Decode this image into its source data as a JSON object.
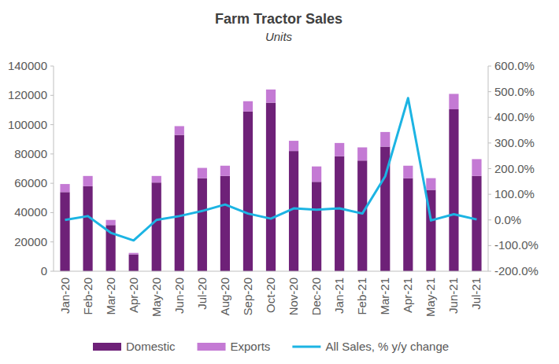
{
  "chart_data": {
    "type": "bar",
    "title": "Farm Tractor Sales",
    "subtitle": "Units",
    "stacked": true,
    "legend": "bottom",
    "grid": false,
    "categories": [
      "Jan-20",
      "Feb-20",
      "Mar-20",
      "Apr-20",
      "May-20",
      "Jun-20",
      "Jul-20",
      "Aug-20",
      "Sep-20",
      "Oct-20",
      "Nov-20",
      "Dec-20",
      "Jan-21",
      "Feb-21",
      "Mar-21",
      "Apr-21",
      "May-21",
      "Jun-21",
      "Jul-21"
    ],
    "series": [
      {
        "name": "Domestic",
        "type": "bar",
        "color": "#6e2178",
        "values": [
          54000,
          58000,
          31500,
          11500,
          60500,
          93000,
          63500,
          65000,
          109000,
          115000,
          82000,
          61000,
          78500,
          75500,
          85000,
          63500,
          55500,
          110500,
          65000
        ]
      },
      {
        "name": "Exports",
        "type": "bar",
        "color": "#c47ad4",
        "values": [
          5500,
          7000,
          3500,
          1000,
          4500,
          6000,
          7000,
          7000,
          7000,
          9000,
          7000,
          10500,
          9000,
          9000,
          10000,
          8500,
          8000,
          10500,
          11500
        ]
      },
      {
        "name": "All Sales, % y/y change",
        "type": "line",
        "axis": "y2",
        "color": "#1cb4e3",
        "values": [
          0,
          15,
          -50,
          -80,
          0,
          15,
          35,
          60,
          25,
          5,
          45,
          40,
          45,
          25,
          170,
          475,
          -2,
          22,
          2
        ]
      }
    ],
    "ylim": [
      0,
      140000
    ],
    "yticks": [
      0,
      20000,
      40000,
      60000,
      80000,
      100000,
      120000,
      140000
    ],
    "y2lim": [
      -200,
      600
    ],
    "y2ticks": [
      {
        "value": -200,
        "label": "-200.0%"
      },
      {
        "value": -100,
        "label": "-100.0%"
      },
      {
        "value": 0,
        "label": "0.0%"
      },
      {
        "value": 100,
        "label": "100.0%"
      },
      {
        "value": 200,
        "label": "200.0%"
      },
      {
        "value": 300,
        "label": "300.0%"
      },
      {
        "value": 400,
        "label": "400.0%"
      },
      {
        "value": 500,
        "label": "500.0%"
      },
      {
        "value": 600,
        "label": "600.0%"
      }
    ]
  }
}
